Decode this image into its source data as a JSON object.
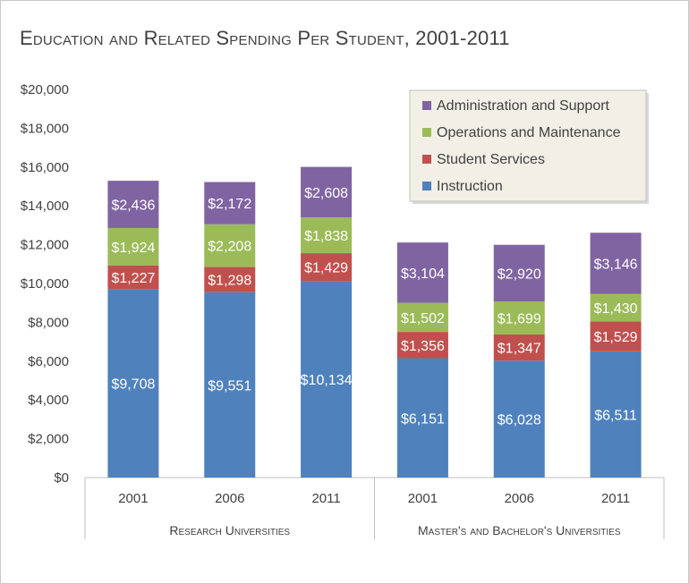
{
  "chart_data": {
    "type": "bar",
    "stacked": true,
    "title": "Education and Related Spending Per Student, 2001-2011",
    "ylim": [
      0,
      20000
    ],
    "y_ticks": [
      "$0",
      "$2,000",
      "$4,000",
      "$6,000",
      "$8,000",
      "$10,000",
      "$12,000",
      "$14,000",
      "$16,000",
      "$18,000",
      "$20,000"
    ],
    "groups": [
      "Research Universities",
      "Master's and Bachelor's Universities"
    ],
    "categories": [
      "2001",
      "2006",
      "2011",
      "2001",
      "2006",
      "2011"
    ],
    "category_group": [
      0,
      0,
      0,
      1,
      1,
      1
    ],
    "series": [
      {
        "name": "Instruction",
        "color": "#4f81bd",
        "values": [
          9708,
          9551,
          10134,
          6151,
          6028,
          6511
        ],
        "labels": [
          "$9,708",
          "$9,551",
          "$10,134",
          "$6,151",
          "$6,028",
          "$6,511"
        ]
      },
      {
        "name": "Student Services",
        "color": "#c0504d",
        "values": [
          1227,
          1298,
          1429,
          1356,
          1347,
          1529
        ],
        "labels": [
          "$1,227",
          "$1,298",
          "$1,429",
          "$1,356",
          "$1,347",
          "$1,529"
        ]
      },
      {
        "name": "Operations and Maintenance",
        "color": "#9bbb59",
        "values": [
          1924,
          2208,
          1838,
          1502,
          1699,
          1430
        ],
        "labels": [
          "$1,924",
          "$2,208",
          "$1,838",
          "$1,502",
          "$1,699",
          "$1,430"
        ]
      },
      {
        "name": "Administration and Support",
        "color": "#8064a2",
        "values": [
          2436,
          2172,
          2608,
          3104,
          2920,
          3146
        ],
        "labels": [
          "$2,436",
          "$2,172",
          "$2,608",
          "$3,104",
          "$2,920",
          "$3,146"
        ]
      }
    ],
    "legend_order": [
      3,
      2,
      1,
      0
    ],
    "legend_position": "top-right",
    "grid": false
  }
}
